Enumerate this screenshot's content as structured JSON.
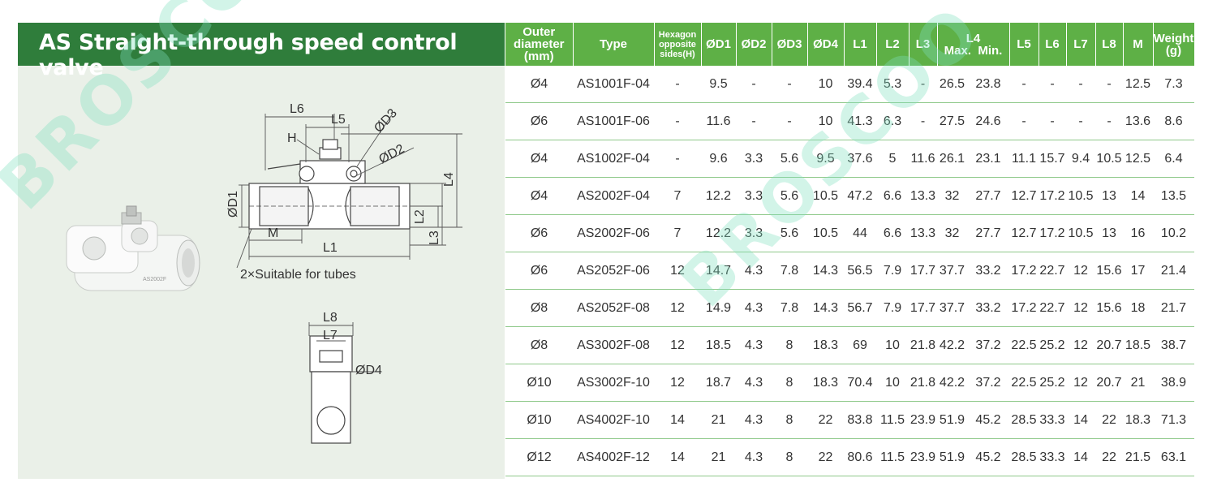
{
  "title": "AS Straight-through speed control valve",
  "watermark": "BROSCOO",
  "colors": {
    "header_green": "#5eb046",
    "title_green": "#2f7d3b",
    "panel_bg": "#eaf0e8",
    "row_line": "#8fc98a"
  },
  "drawing": {
    "labels": {
      "L6": "L6",
      "L5": "L5",
      "D3": "ØD3",
      "H": "H",
      "D2": "ØD2",
      "L4": "L4",
      "D1": "ØD1",
      "L2": "L2",
      "L3": "L3",
      "M": "M",
      "L1": "L1",
      "L8": "L8",
      "L7": "L7",
      "D4": "ØD4"
    },
    "tube_note": "2×Suitable for tubes",
    "product_marking": "AS2002F"
  },
  "table": {
    "headers": {
      "outer": [
        "Outer",
        "diameter",
        "(mm)"
      ],
      "type": "Type",
      "hex": [
        "Hexagon",
        "opposite",
        "sides(H)"
      ],
      "d1": "ØD1",
      "d2": "ØD2",
      "d3": "ØD3",
      "d4": "ØD4",
      "l1": "L1",
      "l2": "L2",
      "l3": "L3",
      "l4": "L4",
      "l4_max": "Max.",
      "l4_min": "Min.",
      "l5": "L5",
      "l6": "L6",
      "l7": "L7",
      "l8": "L8",
      "m": "M",
      "weight": [
        "Weight",
        "(g)"
      ]
    },
    "rows": [
      [
        "Ø4",
        "AS1001F-04",
        "-",
        "9.5",
        "-",
        "-",
        "10",
        "39.4",
        "5.3",
        "-",
        "26.5",
        "23.8",
        "-",
        "-",
        "-",
        "-",
        "12.5",
        "7.3"
      ],
      [
        "Ø6",
        "AS1001F-06",
        "-",
        "11.6",
        "-",
        "-",
        "10",
        "41.3",
        "6.3",
        "-",
        "27.5",
        "24.6",
        "-",
        "-",
        "-",
        "-",
        "13.6",
        "8.6"
      ],
      [
        "Ø4",
        "AS1002F-04",
        "-",
        "9.6",
        "3.3",
        "5.6",
        "9.5",
        "37.6",
        "5",
        "11.6",
        "26.1",
        "23.1",
        "11.1",
        "15.7",
        "9.4",
        "10.5",
        "12.5",
        "6.4"
      ],
      [
        "Ø4",
        "AS2002F-04",
        "7",
        "12.2",
        "3.3",
        "5.6",
        "10.5",
        "47.2",
        "6.6",
        "13.3",
        "32",
        "27.7",
        "12.7",
        "17.2",
        "10.5",
        "13",
        "14",
        "13.5"
      ],
      [
        "Ø6",
        "AS2002F-06",
        "7",
        "12.2",
        "3.3",
        "5.6",
        "10.5",
        "44",
        "6.6",
        "13.3",
        "32",
        "27.7",
        "12.7",
        "17.2",
        "10.5",
        "13",
        "16",
        "10.2"
      ],
      [
        "Ø6",
        "AS2052F-06",
        "12",
        "14.7",
        "4.3",
        "7.8",
        "14.3",
        "56.5",
        "7.9",
        "17.7",
        "37.7",
        "33.2",
        "17.2",
        "22.7",
        "12",
        "15.6",
        "17",
        "21.4"
      ],
      [
        "Ø8",
        "AS2052F-08",
        "12",
        "14.9",
        "4.3",
        "7.8",
        "14.3",
        "56.7",
        "7.9",
        "17.7",
        "37.7",
        "33.2",
        "17.2",
        "22.7",
        "12",
        "15.6",
        "18",
        "21.7"
      ],
      [
        "Ø8",
        "AS3002F-08",
        "12",
        "18.5",
        "4.3",
        "8",
        "18.3",
        "69",
        "10",
        "21.8",
        "42.2",
        "37.2",
        "22.5",
        "25.2",
        "12",
        "20.7",
        "18.5",
        "38.7"
      ],
      [
        "Ø10",
        "AS3002F-10",
        "12",
        "18.7",
        "4.3",
        "8",
        "18.3",
        "70.4",
        "10",
        "21.8",
        "42.2",
        "37.2",
        "22.5",
        "25.2",
        "12",
        "20.7",
        "21",
        "38.9"
      ],
      [
        "Ø10",
        "AS4002F-10",
        "14",
        "21",
        "4.3",
        "8",
        "22",
        "83.8",
        "11.5",
        "23.9",
        "51.9",
        "45.2",
        "28.5",
        "33.3",
        "14",
        "22",
        "18.3",
        "71.3"
      ],
      [
        "Ø12",
        "AS4002F-12",
        "14",
        "21",
        "4.3",
        "8",
        "22",
        "80.6",
        "11.5",
        "23.9",
        "51.9",
        "45.2",
        "28.5",
        "33.3",
        "14",
        "22",
        "21.5",
        "63.1"
      ]
    ]
  }
}
